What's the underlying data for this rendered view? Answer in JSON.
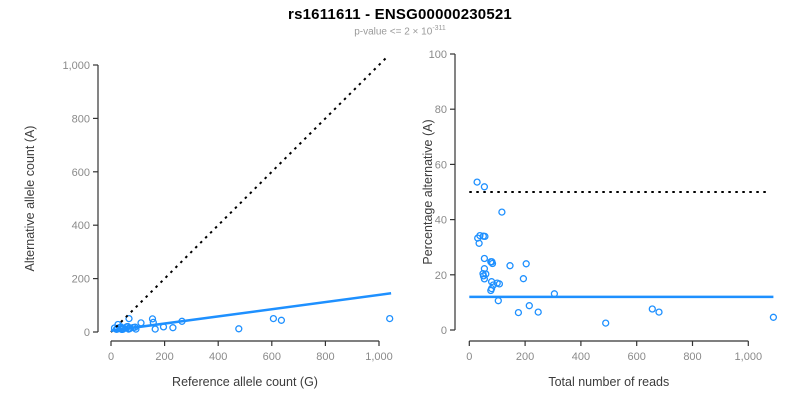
{
  "header": {
    "title": "rs1611611 - ENSG00000230521",
    "subtitle_prefix": "p-value <= 2 × 10",
    "subtitle_exponent": "-311"
  },
  "colors": {
    "accent_blue": "#1E90FF",
    "reference_black": "#000000",
    "tick_gray": "#8a8a8a",
    "axis_gray": "#333333"
  },
  "chart_data": [
    {
      "type": "scatter",
      "panel": "left",
      "xlabel": "Reference allele count (G)",
      "ylabel": "Alternative allele count (A)",
      "xlim": [
        0,
        1045
      ],
      "ylim": [
        0,
        1035
      ],
      "grid": false,
      "legend": "none",
      "xticks": [
        0,
        200,
        400,
        600,
        800,
        1000
      ],
      "yticks": [
        0,
        200,
        400,
        600,
        800,
        1000
      ],
      "xtick_labels": [
        "0",
        "200",
        "400",
        "600",
        "800",
        "1,000"
      ],
      "ytick_labels": [
        "0",
        "200",
        "400",
        "600",
        "800",
        "1,000"
      ],
      "point_color": "#1E90FF",
      "points": [
        [
          13,
          15
        ],
        [
          26,
          28
        ],
        [
          67,
          50
        ],
        [
          20,
          10
        ],
        [
          25,
          13
        ],
        [
          33,
          17
        ],
        [
          37,
          19
        ],
        [
          24,
          11
        ],
        [
          40,
          14
        ],
        [
          58,
          19
        ],
        [
          61,
          20
        ],
        [
          63,
          20
        ],
        [
          112,
          34
        ],
        [
          155,
          49
        ],
        [
          39,
          10
        ],
        [
          42,
          12
        ],
        [
          47,
          12
        ],
        [
          41,
          10
        ],
        [
          44,
          10
        ],
        [
          158,
          36
        ],
        [
          66,
          14
        ],
        [
          72,
          14
        ],
        [
          68,
          12
        ],
        [
          66,
          11
        ],
        [
          90,
          18
        ],
        [
          83,
          17
        ],
        [
          265,
          40
        ],
        [
          93,
          11
        ],
        [
          165,
          11
        ],
        [
          196,
          19
        ],
        [
          231,
          16
        ],
        [
          477,
          12
        ],
        [
          606,
          50
        ],
        [
          636,
          44
        ],
        [
          1040,
          50
        ]
      ],
      "lines": [
        {
          "name": "identity-line",
          "x1": 0,
          "y1": 0,
          "x2": 1030,
          "y2": 1030,
          "dash": true,
          "color": "#000000",
          "width": 2
        },
        {
          "name": "regression-line",
          "x1": 0,
          "y1": 5,
          "x2": 1045,
          "y2": 145,
          "dash": false,
          "color": "#1E90FF",
          "width": 2.5
        }
      ]
    },
    {
      "type": "scatter",
      "panel": "right",
      "xlabel": "Total number of reads",
      "ylabel": "Percentage alternative (A)",
      "xlim": [
        0,
        1100
      ],
      "ylim": [
        0,
        100
      ],
      "grid": false,
      "legend": "none",
      "xticks": [
        0,
        200,
        400,
        600,
        800,
        1000
      ],
      "yticks": [
        0,
        20,
        40,
        60,
        80,
        100
      ],
      "xtick_labels": [
        "0",
        "200",
        "400",
        "600",
        "800",
        "1,000"
      ],
      "ytick_labels": [
        "0",
        "20",
        "40",
        "60",
        "80",
        "100"
      ],
      "point_color": "#1E90FF",
      "points": [
        [
          28,
          53.6
        ],
        [
          54,
          51.9
        ],
        [
          117,
          42.7
        ],
        [
          30,
          33.3
        ],
        [
          38,
          34.2
        ],
        [
          50,
          34.0
        ],
        [
          56,
          33.9
        ],
        [
          35,
          31.4
        ],
        [
          54,
          25.9
        ],
        [
          77,
          24.7
        ],
        [
          81,
          24.7
        ],
        [
          83,
          24.1
        ],
        [
          146,
          23.3
        ],
        [
          204,
          24.0
        ],
        [
          49,
          20.4
        ],
        [
          54,
          22.2
        ],
        [
          59,
          20.3
        ],
        [
          51,
          19.6
        ],
        [
          54,
          18.5
        ],
        [
          194,
          18.6
        ],
        [
          80,
          17.5
        ],
        [
          86,
          16.3
        ],
        [
          80,
          15.0
        ],
        [
          77,
          14.3
        ],
        [
          108,
          16.7
        ],
        [
          100,
          17.0
        ],
        [
          305,
          13.1
        ],
        [
          104,
          10.6
        ],
        [
          176,
          6.3
        ],
        [
          215,
          8.8
        ],
        [
          247,
          6.5
        ],
        [
          489,
          2.5
        ],
        [
          656,
          7.6
        ],
        [
          680,
          6.5
        ],
        [
          1090,
          4.6
        ]
      ],
      "lines": [
        {
          "name": "null-expectation-line",
          "x1": 0,
          "y1": 50,
          "x2": 1070,
          "y2": 50,
          "dash": true,
          "color": "#000000",
          "width": 2
        },
        {
          "name": "fitted-proportion-line",
          "x1": 0,
          "y1": 12,
          "x2": 1090,
          "y2": 12,
          "dash": false,
          "color": "#1E90FF",
          "width": 2.5
        }
      ]
    }
  ]
}
